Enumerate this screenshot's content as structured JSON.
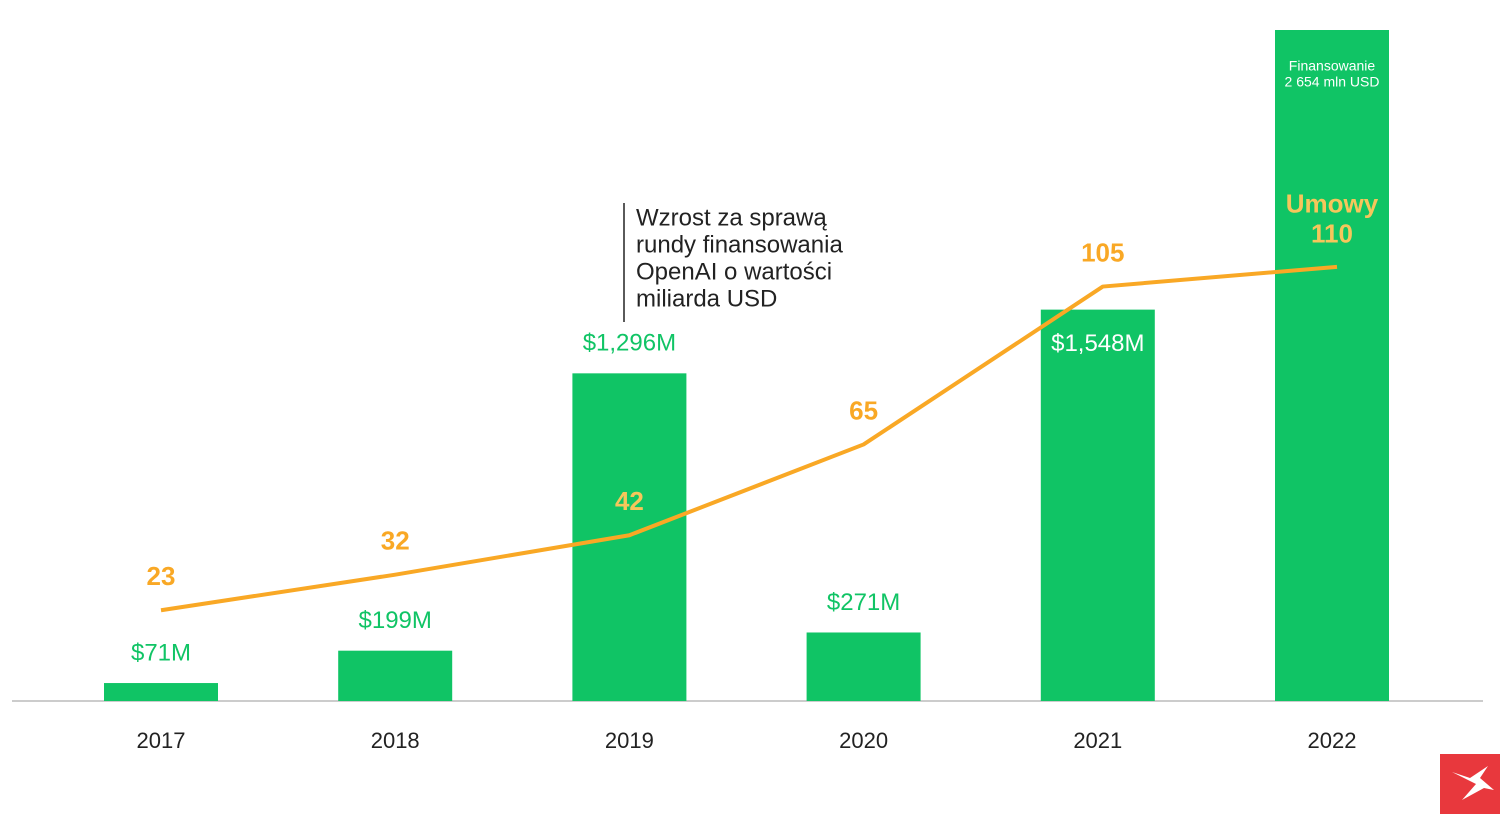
{
  "chart_data": {
    "type": "combo",
    "categories": [
      "2017",
      "2018",
      "2019",
      "2020",
      "2021",
      "2022"
    ],
    "series": [
      {
        "name": "Finansowanie",
        "type": "bar",
        "color": "#10c465",
        "values": [
          71,
          199,
          1296,
          271,
          1548,
          2654
        ],
        "value_labels": [
          "$71M",
          "$199M",
          "$1,296M",
          "$271M",
          "$1,548M",
          "2 654 mln USD"
        ]
      },
      {
        "name": "Umowy",
        "type": "line",
        "axis": "y2",
        "color": "#f9a825",
        "values": [
          23,
          32,
          42,
          65,
          105,
          110
        ]
      }
    ],
    "ylim": [
      0,
      2654
    ],
    "y2lim": [
      0,
      170
    ],
    "annotation": [
      "Wzrost za sprawą",
      "rundy finansowania",
      "OpenAI o wartości",
      "miliarda USD"
    ]
  }
}
